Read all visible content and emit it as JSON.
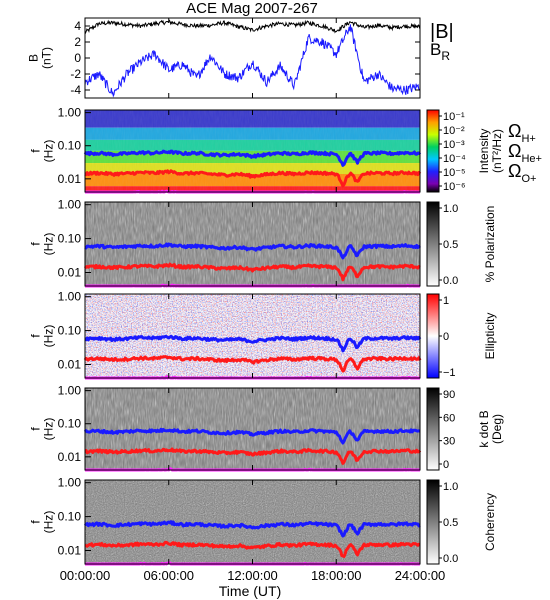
{
  "chart_data": {
    "type": "heatmap",
    "title": "ACE Mag 2007-267",
    "xlabel": "Time (UT)",
    "x_ticks": [
      "00:00:00",
      "06:00:00",
      "12:00:00",
      "18:00:00",
      "24:00:00"
    ],
    "x_tick_hours": [
      0,
      6,
      12,
      18,
      24
    ],
    "xlim_hours": [
      0,
      24
    ],
    "panels": [
      {
        "id": "B",
        "type": "line",
        "ylabel_lines": [
          "B",
          "(nT)"
        ],
        "ylim": [
          -5,
          5
        ],
        "y_ticks": [
          "4",
          "2",
          "0",
          "-2",
          "-4"
        ],
        "y_tick_values": [
          4,
          2,
          0,
          -2,
          -4
        ],
        "series": [
          {
            "name": "|B|",
            "color": "#000000",
            "hours": [
              0,
              1,
              2,
              3,
              4,
              5,
              6,
              7,
              8,
              9,
              10,
              11,
              12,
              13,
              14,
              15,
              16,
              17,
              18,
              19,
              20,
              21,
              22,
              23,
              24
            ],
            "values": [
              3.2,
              4.3,
              4.4,
              4.2,
              4.0,
              4.3,
              4.5,
              4.2,
              4.0,
              4.1,
              4.4,
              3.9,
              3.5,
              4.0,
              4.3,
              4.1,
              4.4,
              4.0,
              3.4,
              4.5,
              3.8,
              4.1,
              3.8,
              4.0,
              3.9
            ]
          },
          {
            "name": "B_R",
            "color": "#1a1aff",
            "hours": [
              0,
              1,
              2,
              3,
              4,
              5,
              6,
              7,
              8,
              9,
              10,
              11,
              12,
              13,
              14,
              15,
              16,
              17,
              18,
              19,
              20,
              21,
              22,
              23,
              24
            ],
            "values": [
              -3.0,
              -2.0,
              -4.5,
              -2.0,
              -0.5,
              0.5,
              -1.5,
              -0.8,
              -2.5,
              0.3,
              -2.0,
              -2.5,
              -0.5,
              -3.0,
              -1.0,
              -3.5,
              2.5,
              2.0,
              0.5,
              4.0,
              -3.0,
              -2.0,
              -3.8,
              -4.0,
              -3.5
            ]
          }
        ]
      },
      {
        "id": "intensity",
        "ylabel_lines": [
          "f",
          "(Hz)"
        ],
        "colorbar_label_lines": [
          "Intensity",
          "(nT²/Hz)"
        ],
        "colorbar_ticks": [
          "10⁻¹",
          "10⁻²",
          "10⁻³",
          "10⁻⁴",
          "10⁻⁵",
          "10⁻⁶"
        ],
        "colormap": "rainbow"
      },
      {
        "id": "polarization",
        "ylabel_lines": [
          "f",
          "(Hz)"
        ],
        "colorbar_label_lines": [
          "% Polarization"
        ],
        "colorbar_ticks": [
          "1.0",
          "0.5",
          "0.0"
        ],
        "colormap": "gray"
      },
      {
        "id": "ellipticity",
        "ylabel_lines": [
          "f",
          "(Hz)"
        ],
        "colorbar_label_lines": [
          "Ellipticity"
        ],
        "colorbar_ticks": [
          "1",
          "0",
          "−1"
        ],
        "colormap": "bwr"
      },
      {
        "id": "kdotb",
        "ylabel_lines": [
          "f",
          "(Hz)"
        ],
        "colorbar_label_lines": [
          "k dot B",
          "(Deg)"
        ],
        "colorbar_ticks": [
          "90",
          "60",
          "30",
          "0"
        ],
        "colormap": "gray"
      },
      {
        "id": "coherency",
        "ylabel_lines": [
          "f",
          "(Hz)"
        ],
        "colorbar_label_lines": [
          "Coherency"
        ],
        "colorbar_ticks": [
          "1.0",
          "0.5",
          "0.0"
        ],
        "colormap": "gray"
      }
    ],
    "freq_axis": {
      "scale": "log",
      "ylim": [
        0.004,
        1.2
      ],
      "y_ticks": [
        "1.00",
        "0.10",
        "0.01"
      ],
      "y_tick_values": [
        1.0,
        0.1,
        0.01
      ]
    },
    "gyrofrequency_legend": [
      {
        "symbol": "Ω",
        "sub": "H+",
        "color": "#1a1aff"
      },
      {
        "symbol": "Ω",
        "sub": "He+",
        "color": "#ff1a1a"
      },
      {
        "symbol": "Ω",
        "sub": "O+",
        "color": "#ff22ff"
      }
    ],
    "gyrofrequency_curves": [
      {
        "name": "Ω H+",
        "color": "#1a1aff",
        "hours": [
          0,
          1,
          2,
          3,
          4,
          5,
          6,
          7,
          8,
          9,
          10,
          11,
          12,
          13,
          14,
          15,
          16,
          17,
          18,
          18.5,
          19,
          19.5,
          20,
          21,
          22,
          23,
          24
        ],
        "values": [
          0.058,
          0.06,
          0.055,
          0.058,
          0.062,
          0.06,
          0.066,
          0.058,
          0.06,
          0.055,
          0.052,
          0.056,
          0.048,
          0.054,
          0.06,
          0.056,
          0.062,
          0.06,
          0.055,
          0.025,
          0.06,
          0.03,
          0.058,
          0.06,
          0.058,
          0.062,
          0.058
        ]
      },
      {
        "name": "Ω He+",
        "color": "#ff1a1a",
        "hours": [
          0,
          1,
          2,
          3,
          4,
          5,
          6,
          7,
          8,
          9,
          10,
          11,
          12,
          13,
          14,
          15,
          16,
          17,
          18,
          18.5,
          19,
          19.5,
          20,
          21,
          22,
          23,
          24
        ],
        "values": [
          0.0145,
          0.015,
          0.014,
          0.0145,
          0.0155,
          0.015,
          0.0165,
          0.0145,
          0.015,
          0.014,
          0.013,
          0.014,
          0.012,
          0.0135,
          0.015,
          0.014,
          0.0155,
          0.015,
          0.014,
          0.0062,
          0.015,
          0.0075,
          0.0145,
          0.015,
          0.0145,
          0.0155,
          0.0145
        ]
      },
      {
        "name": "Ω O+",
        "color": "#ff22ff",
        "hours": [
          0,
          1,
          2,
          3,
          4,
          5,
          6,
          7,
          8,
          9,
          10,
          11,
          12,
          13,
          14,
          15,
          16,
          17,
          18,
          18.5,
          19,
          19.5,
          20,
          21,
          22,
          23,
          24
        ],
        "values": [
          0.0036,
          0.0037,
          0.0035,
          0.0036,
          0.0039,
          0.0037,
          0.0041,
          0.0036,
          0.0037,
          0.0035,
          0.0033,
          0.0035,
          0.003,
          0.0034,
          0.0037,
          0.0035,
          0.0039,
          0.0037,
          0.0035,
          0.0016,
          0.0037,
          0.0019,
          0.0036,
          0.0037,
          0.0036,
          0.0039,
          0.0036
        ]
      }
    ]
  }
}
